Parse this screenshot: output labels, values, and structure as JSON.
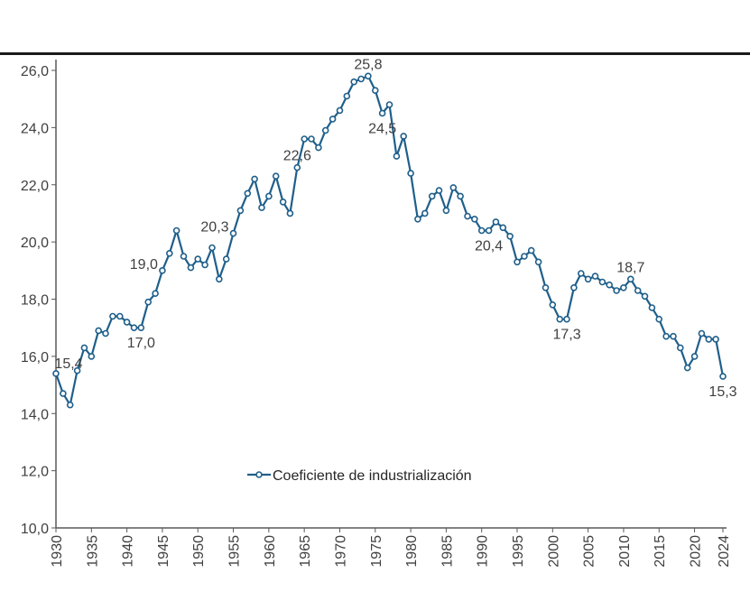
{
  "chart_data": {
    "type": "line",
    "title": "",
    "xlabel": "",
    "ylabel": "",
    "ylim": [
      10,
      26
    ],
    "xlim": [
      1930,
      2024
    ],
    "grid": false,
    "legend_position": "bottom-center",
    "series": [
      {
        "name": "Coeficiente de industrialización",
        "color": "#1f5f8b",
        "x": [
          1930,
          1931,
          1932,
          1933,
          1934,
          1935,
          1936,
          1937,
          1938,
          1939,
          1940,
          1941,
          1942,
          1943,
          1944,
          1945,
          1946,
          1947,
          1948,
          1949,
          1950,
          1951,
          1952,
          1953,
          1954,
          1955,
          1956,
          1957,
          1958,
          1959,
          1960,
          1961,
          1962,
          1963,
          1964,
          1965,
          1966,
          1967,
          1968,
          1969,
          1970,
          1971,
          1972,
          1973,
          1974,
          1975,
          1976,
          1977,
          1978,
          1979,
          1980,
          1981,
          1982,
          1983,
          1984,
          1985,
          1986,
          1987,
          1988,
          1989,
          1990,
          1991,
          1992,
          1993,
          1994,
          1995,
          1996,
          1997,
          1998,
          1999,
          2000,
          2001,
          2002,
          2003,
          2004,
          2005,
          2006,
          2007,
          2008,
          2009,
          2010,
          2011,
          2012,
          2013,
          2014,
          2015,
          2016,
          2017,
          2018,
          2019,
          2020,
          2021,
          2022,
          2023,
          2024
        ],
        "values": [
          15.4,
          14.7,
          14.3,
          15.5,
          16.3,
          16.0,
          16.9,
          16.8,
          17.4,
          17.4,
          17.2,
          17.0,
          17.0,
          17.9,
          18.2,
          19.0,
          19.6,
          20.4,
          19.5,
          19.1,
          19.4,
          19.2,
          19.8,
          18.7,
          19.4,
          20.3,
          21.1,
          21.7,
          22.2,
          21.2,
          21.6,
          22.3,
          21.4,
          21.0,
          22.6,
          23.6,
          23.6,
          23.3,
          23.9,
          24.3,
          24.6,
          25.1,
          25.6,
          25.7,
          25.8,
          25.3,
          24.5,
          24.8,
          23.0,
          23.7,
          22.4,
          20.8,
          21.0,
          21.6,
          21.8,
          21.1,
          21.9,
          21.6,
          20.9,
          20.8,
          20.4,
          20.4,
          20.7,
          20.5,
          20.2,
          19.3,
          19.5,
          19.7,
          19.3,
          18.4,
          17.8,
          17.3,
          17.3,
          18.4,
          18.9,
          18.7,
          18.8,
          18.6,
          18.5,
          18.3,
          18.4,
          18.7,
          18.3,
          18.1,
          17.7,
          17.3,
          16.7,
          16.7,
          16.3,
          15.6,
          16.0,
          16.8,
          16.6,
          16.6,
          15.3
        ]
      }
    ],
    "yticks": [
      "10,0",
      "12,0",
      "14,0",
      "16,0",
      "18,0",
      "20,0",
      "22,0",
      "24,0",
      "26,0"
    ],
    "xticks": [
      "1930",
      "1935",
      "1940",
      "1945",
      "1950",
      "1955",
      "1960",
      "1965",
      "1970",
      "1975",
      "1980",
      "1985",
      "1990",
      "1995",
      "2000",
      "2005",
      "2010",
      "2015",
      "2020",
      "2024"
    ],
    "annotations": [
      {
        "year": 1930,
        "text": "15,4",
        "pos": "above"
      },
      {
        "year": 1942,
        "text": "17,0",
        "pos": "below"
      },
      {
        "year": 1945,
        "text": "19,0",
        "pos": "left"
      },
      {
        "year": 1955,
        "text": "20,3",
        "pos": "left"
      },
      {
        "year": 1964,
        "text": "22,6",
        "pos": "above"
      },
      {
        "year": 1974,
        "text": "25,8",
        "pos": "above"
      },
      {
        "year": 1976,
        "text": "24,5",
        "pos": "below"
      },
      {
        "year": 1991,
        "text": "20,4",
        "pos": "below"
      },
      {
        "year": 2002,
        "text": "17,3",
        "pos": "below"
      },
      {
        "year": 2011,
        "text": "18,7",
        "pos": "above"
      },
      {
        "year": 2024,
        "text": "15,3",
        "pos": "below"
      }
    ]
  }
}
